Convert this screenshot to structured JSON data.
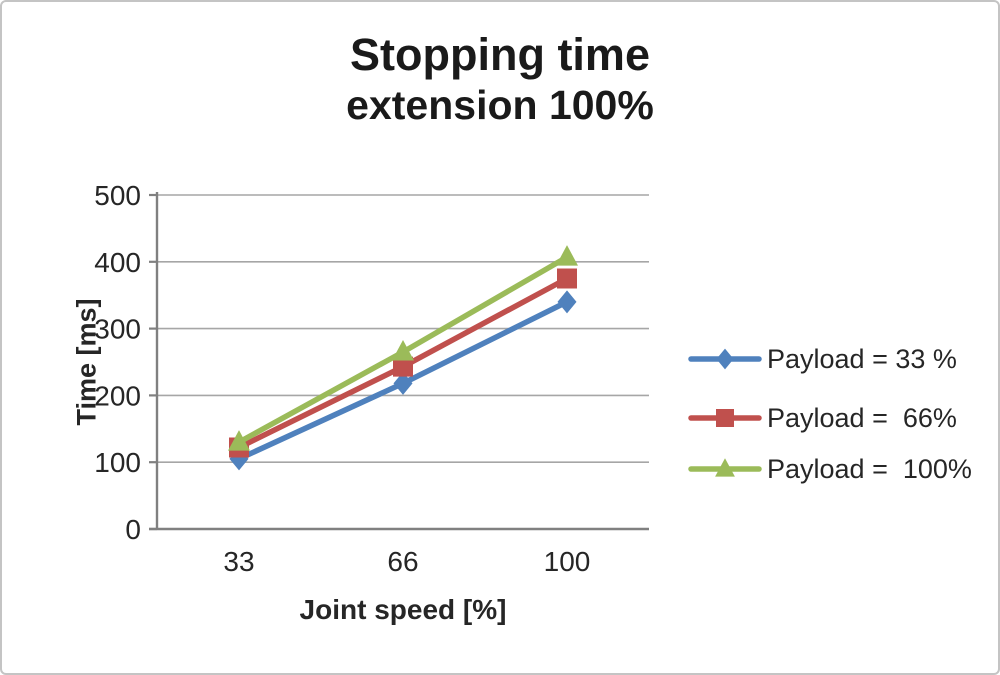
{
  "frame": {
    "background": "#ffffff",
    "border_color": "#c4c4c4"
  },
  "chart_data": {
    "type": "line",
    "title": "Stopping time extension 100%",
    "title_line1": "Stopping time",
    "title_line2": "extension 100%",
    "xlabel": "Joint speed [%]",
    "ylabel": "Time [ms]",
    "categories": [
      "33",
      "66",
      "100"
    ],
    "y_ticks": [
      0,
      100,
      200,
      300,
      400,
      500
    ],
    "ylim": [
      0,
      500
    ],
    "grid": true,
    "legend_position": "right",
    "series": [
      {
        "name": "Payload = 33 %",
        "marker": "diamond",
        "color": "#4F81BD",
        "values": [
          105,
          218,
          340
        ]
      },
      {
        "name": "Payload =  66%",
        "marker": "square",
        "color": "#C0504D",
        "values": [
          122,
          243,
          375
        ]
      },
      {
        "name": "Payload =  100%",
        "marker": "triangle",
        "color": "#9BBB59",
        "values": [
          130,
          265,
          407
        ]
      }
    ],
    "colors": {
      "axis": "#808080",
      "grid": "#A6A6A6",
      "tick_text": "#262626",
      "title_text": "#1a1a1a"
    }
  }
}
